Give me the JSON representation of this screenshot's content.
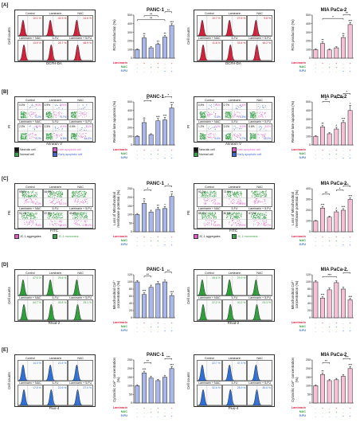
{
  "rows": [
    {
      "letter": "[A]",
      "panel_kind": "histogram",
      "panel_ylabel": "Cell counts",
      "panel_xlabel": "DCFH-DA",
      "chart_ylabel": "ROS production (%)",
      "left": {
        "cells": [
          {
            "label": "Control",
            "pct": "10.1 %"
          },
          {
            "label": "Laminarin",
            "pct": "42.3 %"
          },
          {
            "label": "NAC",
            "pct": "14.6 %"
          },
          {
            "label": "Laminarin + NAC",
            "pct": "13.9 %"
          },
          {
            "label": "5-FU",
            "pct": "28.7 %"
          },
          {
            "label": "Laminarin + 5-FU",
            "pct": "48.9 %"
          }
        ]
      },
      "right": {
        "cells": [
          {
            "label": "Control",
            "pct": "10.7 %"
          },
          {
            "label": "Laminarin",
            "pct": "27.6 %"
          },
          {
            "label": "NAC",
            "pct": "9.8 %"
          },
          {
            "label": "Laminarin + NAC",
            "pct": "11.8 %"
          },
          {
            "label": "5-FU",
            "pct": "33.4 %"
          },
          {
            "label": "Laminarin + 5-FU",
            "pct": "45.2 %"
          }
        ]
      }
    },
    {
      "letter": "[B]",
      "panel_kind": "scatter",
      "panel_ylabel": "PI",
      "panel_xlabel": "Annexin V",
      "chart_ylabel": "Relative late apoptosis (%)",
      "legend": [
        "Necrotic cell",
        "Late apoptotic cell",
        "Normal cell",
        "Early apoptotic cell"
      ],
      "left": {
        "cells": [
          {
            "label": "Control",
            "q": [
              "0.3%",
              "1.6%",
              "",
              "0.2%"
            ]
          },
          {
            "label": "Laminarin",
            "q": [
              "0.9%",
              "6.4%",
              "",
              "6.7%"
            ]
          },
          {
            "label": "NAC",
            "q": [
              "",
              "",
              "",
              ""
            ]
          },
          {
            "label": "Laminarin + NAC",
            "q": [
              "2.3%",
              "4.2%",
              "",
              "6.2%"
            ]
          },
          {
            "label": "5-FU",
            "q": [
              "1.5%",
              "2.4%",
              "",
              "6.8%"
            ]
          },
          {
            "label": "Laminarin + 5-FU",
            "q": [
              "0.9%",
              "7.1%",
              "",
              "14.4%"
            ]
          }
        ]
      },
      "right": {
        "cells": [
          {
            "label": "Control",
            "q": [
              "0.9%",
              "1.5%",
              "",
              "0.6%"
            ]
          },
          {
            "label": "Laminarin",
            "q": [
              "0.7%",
              "4.6%",
              "",
              "9.5%"
            ]
          },
          {
            "label": "NAC",
            "q": [
              "",
              "",
              "",
              ""
            ]
          },
          {
            "label": "Laminarin + NAC",
            "q": [
              "1.2%",
              "2.3%",
              "",
              "5.6%"
            ]
          },
          {
            "label": "5-FU",
            "q": [
              "1.0%",
              "3.2%",
              "",
              "9.7%"
            ]
          },
          {
            "label": "Laminarin + 5-FU",
            "q": [
              "0.8%",
              "6.0%",
              "",
              "15.2%"
            ]
          }
        ]
      }
    },
    {
      "letter": "[C]",
      "panel_kind": "scatter2",
      "panel_ylabel": "PE",
      "panel_xlabel": "FITC",
      "chart_ylabel": "Loss of Mitochondrial membrane potential (%)",
      "legend": [
        "JC-1 aggregates",
        "JC-1 monomers"
      ],
      "left": {
        "cells": [
          {
            "label": "Control",
            "q": [
              "99.6%",
              "0.3%"
            ]
          },
          {
            "label": "Laminarin",
            "q": [
              "84.8%",
              "15.1%"
            ]
          },
          {
            "label": "NAC",
            "q": [
              "",
              ""
            ]
          },
          {
            "label": "Laminarin + NAC",
            "q": [
              "92.1%",
              "7.8%"
            ]
          },
          {
            "label": "5-FU",
            "q": [
              "87.5%",
              "12.4%"
            ]
          },
          {
            "label": "Laminarin + 5-FU",
            "q": [
              "69.8%",
              "30.1%"
            ]
          }
        ]
      },
      "right": {
        "cells": [
          {
            "label": "Control",
            "q": [
              "92.7%",
              "6.3%"
            ]
          },
          {
            "label": "Laminarin",
            "q": [
              "73.1%",
              "26.8%"
            ]
          },
          {
            "label": "NAC",
            "q": [
              "",
              ""
            ]
          },
          {
            "label": "Laminarin + NAC",
            "q": [
              "85.1%",
              "14.8%"
            ]
          },
          {
            "label": "5-FU",
            "q": [
              "80.6%",
              "19.3%"
            ]
          },
          {
            "label": "Laminarin + 5-FU",
            "q": [
              "67.2%",
              "32.7%"
            ]
          }
        ]
      }
    },
    {
      "letter": "[D]",
      "panel_kind": "histogram-green",
      "panel_ylabel": "Cell counts",
      "panel_xlabel": "Rhod-2",
      "chart_ylabel": "Mitochondrial Ca²⁺ concentration (%)",
      "left": {
        "cells": [
          {
            "label": "Control",
            "pct": "47.6 %"
          },
          {
            "label": "Laminarin",
            "pct": "29.8 %"
          },
          {
            "label": "NAC",
            "pct": ""
          },
          {
            "label": "Laminarin + NAC",
            "pct": "44.7 %"
          },
          {
            "label": "5-FU",
            "pct": "45.8 %"
          },
          {
            "label": "Laminarin + 5-FU",
            "pct": "29.1 %"
          }
        ]
      },
      "right": {
        "cells": [
          {
            "label": "Control",
            "pct": "45.6 %"
          },
          {
            "label": "Laminarin",
            "pct": "29.9 %"
          },
          {
            "label": "NAC",
            "pct": ""
          },
          {
            "label": "Laminarin + NAC",
            "pct": "37.2 %"
          },
          {
            "label": "5-FU",
            "pct": "40.2 %"
          },
          {
            "label": "Laminarin + 5-FU",
            "pct": "23.3 %"
          }
        ]
      }
    },
    {
      "letter": "[E]",
      "panel_kind": "histogram-blue",
      "panel_ylabel": "Cell counts",
      "panel_xlabel": "Fluo-4",
      "chart_ylabel": "Cytosolic Ca²⁺ concentration (%)",
      "left": {
        "cells": [
          {
            "label": "Control",
            "pct": "14.3 %"
          },
          {
            "label": "Laminarin",
            "pct": "21.6 %"
          },
          {
            "label": "NAC",
            "pct": ""
          },
          {
            "label": "Laminarin + NAC",
            "pct": "17.5 %"
          },
          {
            "label": "5-FU",
            "pct": "22.6 %"
          },
          {
            "label": "Laminarin + 5-FU",
            "pct": "27.0 %"
          }
        ]
      },
      "right": {
        "cells": [
          {
            "label": "Control",
            "pct": "22.7 %"
          },
          {
            "label": "Laminarin",
            "pct": "37.3 %"
          },
          {
            "label": "NAC",
            "pct": ""
          },
          {
            "label": "Laminarin + NAC",
            "pct": "32.6 %"
          },
          {
            "label": "5-FU",
            "pct": "28.9 %"
          },
          {
            "label": "Laminarin + 5-FU",
            "pct": "45.5 %"
          }
        ]
      }
    }
  ],
  "treatments": {
    "labels": [
      "Laminarin",
      "NAC",
      "5-FU"
    ],
    "colors": [
      "#e0264b",
      "#2e9e3a",
      "#2f6fd6"
    ],
    "signs": [
      [
        "-",
        "+",
        "-",
        "+",
        "-",
        "+"
      ],
      [
        "-",
        "-",
        "+",
        "+",
        "-",
        "-"
      ],
      [
        "-",
        "-",
        "-",
        "-",
        "+",
        "+"
      ]
    ]
  },
  "colors": {
    "panc_bar": "#a9b7ea",
    "mia_bar": "#f6c0d6",
    "bar_edge": "#222222",
    "hist_red": "#d0203a",
    "hist_green": "#2e9e3a",
    "hist_blue": "#2f6fd6",
    "scatter_pink": "#e05cc5",
    "scatter_green": "#3aa14a",
    "scatter_blue": "#3f67d8"
  },
  "chart_data": [
    {
      "type": "bar",
      "id": "A-PANC",
      "title": "PANC-1",
      "ylabel": "ROS production (%)",
      "ylim": [
        0,
        500
      ],
      "yticks": [
        0,
        100,
        200,
        300,
        400,
        500
      ],
      "values": [
        100,
        235,
        120,
        160,
        245,
        380
      ],
      "errors": [
        8,
        25,
        12,
        15,
        20,
        20
      ],
      "marks": [
        "",
        "**",
        "",
        "**",
        "**",
        "***"
      ],
      "brackets": [
        {
          "from": 0,
          "to": 4,
          "label": "**",
          "level": 0
        },
        {
          "from": 1,
          "to": 3,
          "label": "**",
          "level": 1
        },
        {
          "from": 4,
          "to": 5,
          "label": "**",
          "level": 2
        }
      ]
    },
    {
      "type": "bar",
      "id": "A-MIA",
      "title": "MIA PaCa-2",
      "ylabel": "ROS production (%)",
      "ylim": [
        0,
        500
      ],
      "yticks": [
        0,
        100,
        200,
        300,
        400,
        500
      ],
      "values": [
        100,
        170,
        95,
        120,
        240,
        390
      ],
      "errors": [
        8,
        20,
        10,
        12,
        22,
        25
      ],
      "marks": [
        "",
        "**",
        "",
        "",
        "**",
        "***"
      ],
      "brackets": [
        {
          "from": 1,
          "to": 4,
          "label": "*",
          "level": 0
        },
        {
          "from": 4,
          "to": 5,
          "label": "**",
          "level": 1
        }
      ]
    },
    {
      "type": "bar",
      "id": "B-PANC",
      "title": "PANC-1",
      "ylabel": "Relative late apoptosis (%)",
      "ylim": [
        0,
        500
      ],
      "yticks": [
        0,
        100,
        200,
        300,
        400,
        500
      ],
      "values": [
        100,
        260,
        120,
        280,
        290,
        430
      ],
      "errors": [
        8,
        30,
        10,
        28,
        30,
        40
      ],
      "marks": [
        "",
        "**",
        "",
        "***",
        "***",
        "***"
      ],
      "brackets": [
        {
          "from": 1,
          "to": 2,
          "label": "**",
          "level": 0
        },
        {
          "from": 4,
          "to": 5,
          "label": "*",
          "level": 1
        }
      ]
    },
    {
      "type": "bar",
      "id": "B-MIA",
      "title": "MIA PaCa-2",
      "ylabel": "Relative late apoptosis (%)",
      "ylim": [
        0,
        500
      ],
      "yticks": [
        0,
        100,
        200,
        300,
        400,
        500
      ],
      "values": [
        100,
        210,
        130,
        185,
        260,
        400
      ],
      "errors": [
        8,
        20,
        12,
        20,
        25,
        60
      ],
      "marks": [
        "",
        "**",
        "",
        "*",
        "***",
        "*"
      ],
      "brackets": [
        {
          "from": 1,
          "to": 2,
          "label": "**",
          "level": 0
        },
        {
          "from": 3,
          "to": 4,
          "label": "***",
          "level": 1
        },
        {
          "from": 4,
          "to": 5,
          "label": "*",
          "level": 2
        }
      ]
    },
    {
      "type": "bar",
      "id": "C-PANC",
      "title": "PANC-1",
      "ylabel": "Loss of Mitochondrial membrane potential (%)",
      "ylim": [
        0,
        250
      ],
      "yticks": [
        0,
        50,
        100,
        150,
        200,
        250
      ],
      "values": [
        100,
        165,
        115,
        130,
        135,
        205
      ],
      "errors": [
        6,
        15,
        10,
        12,
        12,
        15
      ],
      "marks": [
        "",
        "**",
        "",
        "**",
        "*",
        "**"
      ],
      "brackets": [
        {
          "from": 1,
          "to": 2,
          "label": "*",
          "level": 0
        },
        {
          "from": 4,
          "to": 5,
          "label": "*",
          "level": 1
        }
      ]
    },
    {
      "type": "bar",
      "id": "C-MIA",
      "title": "MIA PaCa-2",
      "ylabel": "Loss of Mitochondrial membrane potential (%)",
      "ylim": [
        0,
        400
      ],
      "yticks": [
        0,
        100,
        200,
        300,
        400
      ],
      "values": [
        100,
        220,
        135,
        185,
        200,
        300
      ],
      "errors": [
        6,
        15,
        10,
        15,
        15,
        15
      ],
      "marks": [
        "",
        "***",
        "",
        "*",
        "***",
        "***"
      ],
      "brackets": [
        {
          "from": 1,
          "to": 2,
          "label": "**",
          "level": 0
        },
        {
          "from": 3,
          "to": 4,
          "label": "*",
          "level": 1
        },
        {
          "from": 4,
          "to": 5,
          "label": "***",
          "level": 2
        }
      ]
    },
    {
      "type": "bar",
      "id": "D-PANC",
      "title": "PANC-1",
      "ylabel": "Mitochondrial Ca²⁺ concentration (%)",
      "ylim": [
        0,
        120
      ],
      "yticks": [
        0,
        20,
        40,
        60,
        80,
        100,
        120
      ],
      "values": [
        100,
        65,
        85,
        95,
        100,
        62
      ],
      "errors": [
        4,
        5,
        6,
        6,
        5,
        5
      ],
      "marks": [
        "",
        "***",
        "",
        "",
        "",
        "***"
      ],
      "brackets": [
        {
          "from": 1,
          "to": 2,
          "label": "**",
          "level": 0
        },
        {
          "from": 4,
          "to": 5,
          "label": "**",
          "level": 1
        }
      ]
    },
    {
      "type": "bar",
      "id": "D-MIA",
      "title": "MIA PaCa-2",
      "ylabel": "Mitochondrial Ca²⁺ concentration (%)",
      "ylim": [
        0,
        120
      ],
      "yticks": [
        0,
        20,
        40,
        60,
        80,
        100,
        120
      ],
      "values": [
        100,
        55,
        78,
        98,
        80,
        50
      ],
      "errors": [
        4,
        4,
        5,
        5,
        5,
        4
      ],
      "marks": [
        "",
        "***",
        "",
        "",
        "",
        "***"
      ],
      "brackets": [
        {
          "from": 1,
          "to": 3,
          "label": "***",
          "level": 0
        },
        {
          "from": 4,
          "to": 5,
          "label": "**",
          "level": 1
        }
      ]
    },
    {
      "type": "bar",
      "id": "E-PANC",
      "title": "PANC-1",
      "ylabel": "Cytosolic Ca²⁺ concentration (%)",
      "ylim": [
        0,
        250
      ],
      "yticks": [
        0,
        50,
        100,
        150,
        200,
        250
      ],
      "values": [
        100,
        175,
        145,
        130,
        150,
        200
      ],
      "errors": [
        6,
        10,
        10,
        8,
        10,
        12
      ],
      "marks": [
        "",
        "***",
        "",
        "",
        "",
        "***"
      ],
      "brackets": [
        {
          "from": 1,
          "to": 2,
          "label": "**",
          "level": 0
        },
        {
          "from": 4,
          "to": 5,
          "label": "***",
          "level": 1
        }
      ]
    },
    {
      "type": "bar",
      "id": "E-MIA",
      "title": "MIA PaCa-2",
      "ylabel": "Cytosolic Ca²⁺ concentration (%)",
      "ylim": [
        0,
        250
      ],
      "yticks": [
        0,
        50,
        100,
        150,
        200,
        250
      ],
      "values": [
        100,
        165,
        130,
        135,
        155,
        200
      ],
      "errors": [
        5,
        10,
        8,
        8,
        10,
        12
      ],
      "marks": [
        "",
        "**",
        "",
        "",
        "",
        "***"
      ],
      "brackets": [
        {
          "from": 1,
          "to": 2,
          "label": "**",
          "level": 0
        },
        {
          "from": 4,
          "to": 5,
          "label": "***",
          "level": 1
        }
      ]
    }
  ]
}
